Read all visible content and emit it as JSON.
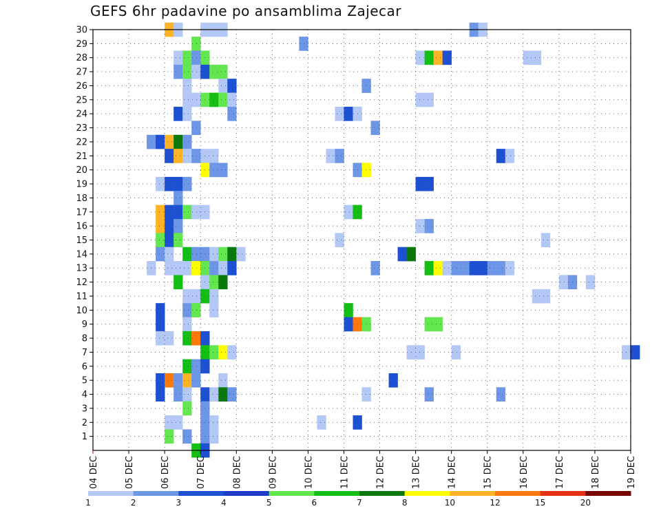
{
  "chart_data": {
    "type": "heatmap",
    "title": "GEFS 6hr padavine po ansamblima Zajecar",
    "xlabel": "",
    "ylabel": "",
    "x_tick_labels": [
      "04 DEC",
      "05 DEC",
      "06 DEC",
      "07 DEC",
      "08 DEC",
      "09 DEC",
      "10 DEC",
      "11 DEC",
      "12 DEC",
      "13 DEC",
      "14 DEC",
      "15 DEC",
      "16 DEC",
      "17 DEC",
      "18 DEC",
      "19 DEC"
    ],
    "xlim_days": [
      0,
      15
    ],
    "steps_per_day": 4,
    "y_tick_labels": [
      "1",
      "2",
      "3",
      "4",
      "5",
      "6",
      "7",
      "8",
      "9",
      "10",
      "11",
      "12",
      "13",
      "14",
      "15",
      "16",
      "17",
      "18",
      "19",
      "20",
      "21",
      "22",
      "23",
      "24",
      "25",
      "26",
      "27",
      "28",
      "29",
      "30"
    ],
    "ylim": [
      0,
      30
    ],
    "grid": true,
    "legend": {
      "placement": "bottom",
      "labels": [
        "1",
        "2",
        "3",
        "4",
        "5",
        "6",
        "7",
        "8",
        "10",
        "12",
        "15",
        "20"
      ],
      "colors": [
        "#b4c8f5",
        "#6e96e6",
        "#1e50d2",
        "#1e3cc8",
        "#64e650",
        "#14be14",
        "#0a780a",
        "#ffff00",
        "#ffb428",
        "#ff780a",
        "#e63214",
        "#780000"
      ]
    },
    "levels": [
      "#b4c8f5",
      "#6e96e6",
      "#1e50d2",
      "#64e650",
      "#14be14",
      "#0a780a",
      "#ffff00",
      "#ffb428",
      "#ff780a"
    ],
    "cells": [
      [
        30,
        8,
        7
      ],
      [
        30,
        9,
        0
      ],
      [
        30,
        12,
        0
      ],
      [
        30,
        13,
        0
      ],
      [
        30,
        14,
        0
      ],
      [
        30,
        42,
        1
      ],
      [
        30,
        43,
        0
      ],
      [
        29,
        11,
        3
      ],
      [
        29,
        23,
        1
      ],
      [
        28,
        9,
        0
      ],
      [
        28,
        10,
        3
      ],
      [
        28,
        11,
        1
      ],
      [
        28,
        12,
        3
      ],
      [
        28,
        36,
        0
      ],
      [
        28,
        37,
        4
      ],
      [
        28,
        38,
        7
      ],
      [
        28,
        39,
        2
      ],
      [
        28,
        48,
        0
      ],
      [
        28,
        49,
        0
      ],
      [
        27,
        9,
        1
      ],
      [
        27,
        10,
        3
      ],
      [
        27,
        11,
        0
      ],
      [
        27,
        12,
        2
      ],
      [
        27,
        13,
        3
      ],
      [
        27,
        14,
        3
      ],
      [
        26,
        10,
        0
      ],
      [
        26,
        14,
        0
      ],
      [
        26,
        15,
        2
      ],
      [
        26,
        30,
        1
      ],
      [
        25,
        10,
        0
      ],
      [
        25,
        11,
        0
      ],
      [
        25,
        12,
        3
      ],
      [
        25,
        13,
        4
      ],
      [
        25,
        14,
        3
      ],
      [
        25,
        15,
        0
      ],
      [
        25,
        36,
        0
      ],
      [
        25,
        37,
        0
      ],
      [
        24,
        9,
        2
      ],
      [
        24,
        10,
        0
      ],
      [
        24,
        15,
        1
      ],
      [
        24,
        27,
        0
      ],
      [
        24,
        28,
        2
      ],
      [
        24,
        29,
        0
      ],
      [
        23,
        11,
        1
      ],
      [
        23,
        31,
        1
      ],
      [
        22,
        6,
        1
      ],
      [
        22,
        7,
        2
      ],
      [
        22,
        8,
        7
      ],
      [
        22,
        9,
        5
      ],
      [
        22,
        10,
        1
      ],
      [
        21,
        8,
        2
      ],
      [
        21,
        9,
        7
      ],
      [
        21,
        10,
        0
      ],
      [
        21,
        11,
        1
      ],
      [
        21,
        12,
        0
      ],
      [
        21,
        13,
        0
      ],
      [
        21,
        26,
        0
      ],
      [
        21,
        27,
        1
      ],
      [
        21,
        45,
        2
      ],
      [
        21,
        46,
        0
      ],
      [
        20,
        12,
        6
      ],
      [
        20,
        13,
        1
      ],
      [
        20,
        14,
        1
      ],
      [
        20,
        29,
        1
      ],
      [
        20,
        30,
        6
      ],
      [
        19,
        7,
        0
      ],
      [
        19,
        8,
        2
      ],
      [
        19,
        9,
        2
      ],
      [
        19,
        10,
        1
      ],
      [
        19,
        36,
        2
      ],
      [
        19,
        37,
        2
      ],
      [
        18,
        9,
        1
      ],
      [
        17,
        7,
        7
      ],
      [
        17,
        8,
        2
      ],
      [
        17,
        9,
        2
      ],
      [
        17,
        10,
        3
      ],
      [
        17,
        11,
        0
      ],
      [
        17,
        12,
        0
      ],
      [
        17,
        28,
        0
      ],
      [
        17,
        29,
        4
      ],
      [
        16,
        7,
        7
      ],
      [
        16,
        8,
        2
      ],
      [
        16,
        9,
        1
      ],
      [
        16,
        36,
        0
      ],
      [
        16,
        37,
        1
      ],
      [
        15,
        7,
        3
      ],
      [
        15,
        8,
        2
      ],
      [
        15,
        9,
        3
      ],
      [
        15,
        27,
        0
      ],
      [
        15,
        50,
        0
      ],
      [
        14,
        7,
        1
      ],
      [
        14,
        8,
        0
      ],
      [
        14,
        10,
        4
      ],
      [
        14,
        11,
        1
      ],
      [
        14,
        12,
        1
      ],
      [
        14,
        13,
        0
      ],
      [
        14,
        14,
        3
      ],
      [
        14,
        15,
        5
      ],
      [
        14,
        16,
        0
      ],
      [
        14,
        34,
        2
      ],
      [
        14,
        35,
        5
      ],
      [
        13,
        6,
        0
      ],
      [
        13,
        8,
        0
      ],
      [
        13,
        9,
        0
      ],
      [
        13,
        10,
        0
      ],
      [
        13,
        11,
        6
      ],
      [
        13,
        12,
        3
      ],
      [
        13,
        13,
        1
      ],
      [
        13,
        14,
        0
      ],
      [
        13,
        15,
        2
      ],
      [
        13,
        31,
        1
      ],
      [
        13,
        37,
        4
      ],
      [
        13,
        38,
        6
      ],
      [
        13,
        39,
        0
      ],
      [
        13,
        40,
        1
      ],
      [
        13,
        41,
        1
      ],
      [
        13,
        42,
        2
      ],
      [
        13,
        43,
        2
      ],
      [
        13,
        44,
        1
      ],
      [
        13,
        45,
        1
      ],
      [
        13,
        46,
        0
      ],
      [
        12,
        9,
        4
      ],
      [
        12,
        12,
        0
      ],
      [
        12,
        13,
        3
      ],
      [
        12,
        14,
        5
      ],
      [
        12,
        52,
        0
      ],
      [
        12,
        53,
        1
      ],
      [
        12,
        55,
        0
      ],
      [
        11,
        10,
        0
      ],
      [
        11,
        11,
        0
      ],
      [
        11,
        12,
        4
      ],
      [
        11,
        13,
        0
      ],
      [
        11,
        49,
        0
      ],
      [
        11,
        50,
        0
      ],
      [
        10,
        7,
        2
      ],
      [
        10,
        10,
        1
      ],
      [
        10,
        11,
        3
      ],
      [
        10,
        13,
        0
      ],
      [
        10,
        28,
        4
      ],
      [
        9,
        7,
        2
      ],
      [
        9,
        10,
        0
      ],
      [
        9,
        28,
        2
      ],
      [
        9,
        29,
        8
      ],
      [
        9,
        30,
        3
      ],
      [
        9,
        37,
        3
      ],
      [
        9,
        38,
        3
      ],
      [
        8,
        7,
        0
      ],
      [
        8,
        8,
        0
      ],
      [
        8,
        10,
        4
      ],
      [
        8,
        11,
        8
      ],
      [
        8,
        12,
        2
      ],
      [
        7,
        12,
        4
      ],
      [
        7,
        13,
        3
      ],
      [
        7,
        14,
        6
      ],
      [
        7,
        15,
        0
      ],
      [
        7,
        35,
        0
      ],
      [
        7,
        36,
        0
      ],
      [
        7,
        40,
        0
      ],
      [
        7,
        59,
        0
      ],
      [
        7,
        60,
        2
      ],
      [
        6,
        10,
        4
      ],
      [
        6,
        11,
        1
      ],
      [
        6,
        12,
        2
      ],
      [
        5,
        7,
        2
      ],
      [
        5,
        8,
        8
      ],
      [
        5,
        9,
        1
      ],
      [
        5,
        10,
        7
      ],
      [
        5,
        11,
        1
      ],
      [
        5,
        14,
        0
      ],
      [
        5,
        33,
        2
      ],
      [
        4,
        7,
        2
      ],
      [
        4,
        9,
        1
      ],
      [
        4,
        10,
        0
      ],
      [
        4,
        12,
        2
      ],
      [
        4,
        13,
        0
      ],
      [
        4,
        14,
        5
      ],
      [
        4,
        15,
        1
      ],
      [
        4,
        30,
        0
      ],
      [
        4,
        37,
        1
      ],
      [
        4,
        45,
        1
      ],
      [
        3,
        10,
        3
      ],
      [
        3,
        12,
        1
      ],
      [
        2,
        8,
        0
      ],
      [
        2,
        9,
        0
      ],
      [
        2,
        12,
        1
      ],
      [
        2,
        13,
        0
      ],
      [
        2,
        25,
        0
      ],
      [
        2,
        29,
        2
      ],
      [
        1,
        8,
        3
      ],
      [
        1,
        10,
        1
      ],
      [
        1,
        12,
        1
      ],
      [
        1,
        13,
        0
      ],
      [
        0,
        11,
        4
      ],
      [
        0,
        12,
        2
      ]
    ]
  }
}
